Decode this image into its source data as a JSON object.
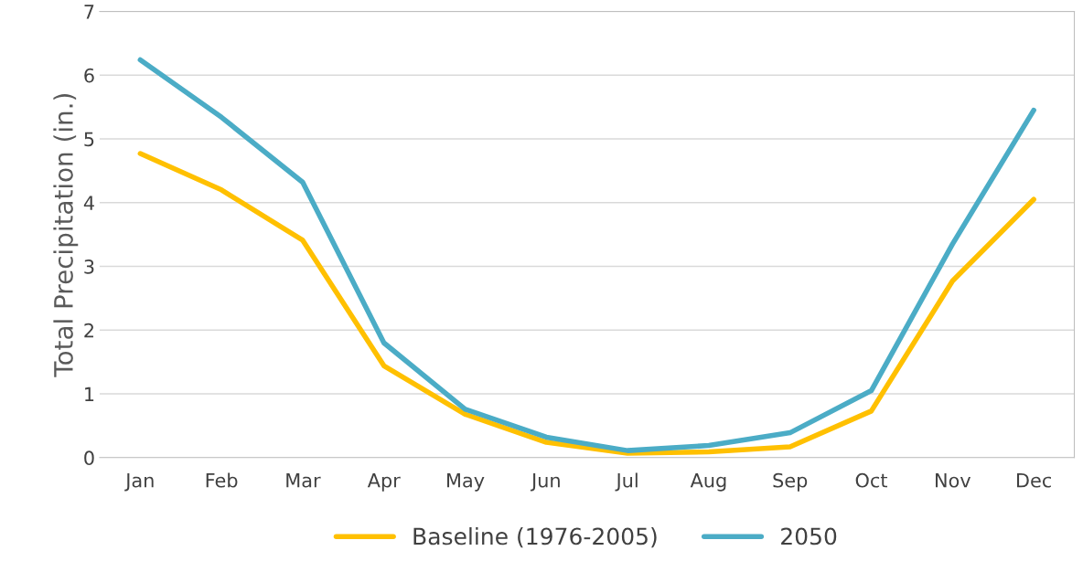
{
  "chart_data": {
    "type": "line",
    "ylabel": "Total Precipitation (in.)",
    "categories": [
      "Jan",
      "Feb",
      "Mar",
      "Apr",
      "May",
      "Jun",
      "Jul",
      "Aug",
      "Sep",
      "Oct",
      "Nov",
      "Dec"
    ],
    "series": [
      {
        "name": "Baseline (1976-2005)",
        "color": "#ffc000",
        "values": [
          4.77,
          4.2,
          3.41,
          1.44,
          0.68,
          0.24,
          0.07,
          0.09,
          0.17,
          0.73,
          2.77,
          4.05
        ]
      },
      {
        "name": "2050",
        "color": "#4bacc6",
        "values": [
          6.24,
          5.34,
          4.32,
          1.8,
          0.76,
          0.32,
          0.11,
          0.19,
          0.39,
          1.05,
          3.35,
          5.45
        ]
      }
    ],
    "ylim": [
      0,
      7
    ],
    "yticks": [
      0,
      1,
      2,
      3,
      4,
      5,
      6,
      7
    ],
    "grid": "y",
    "legend": "bottom",
    "marker": "none",
    "line_style": "solid"
  }
}
